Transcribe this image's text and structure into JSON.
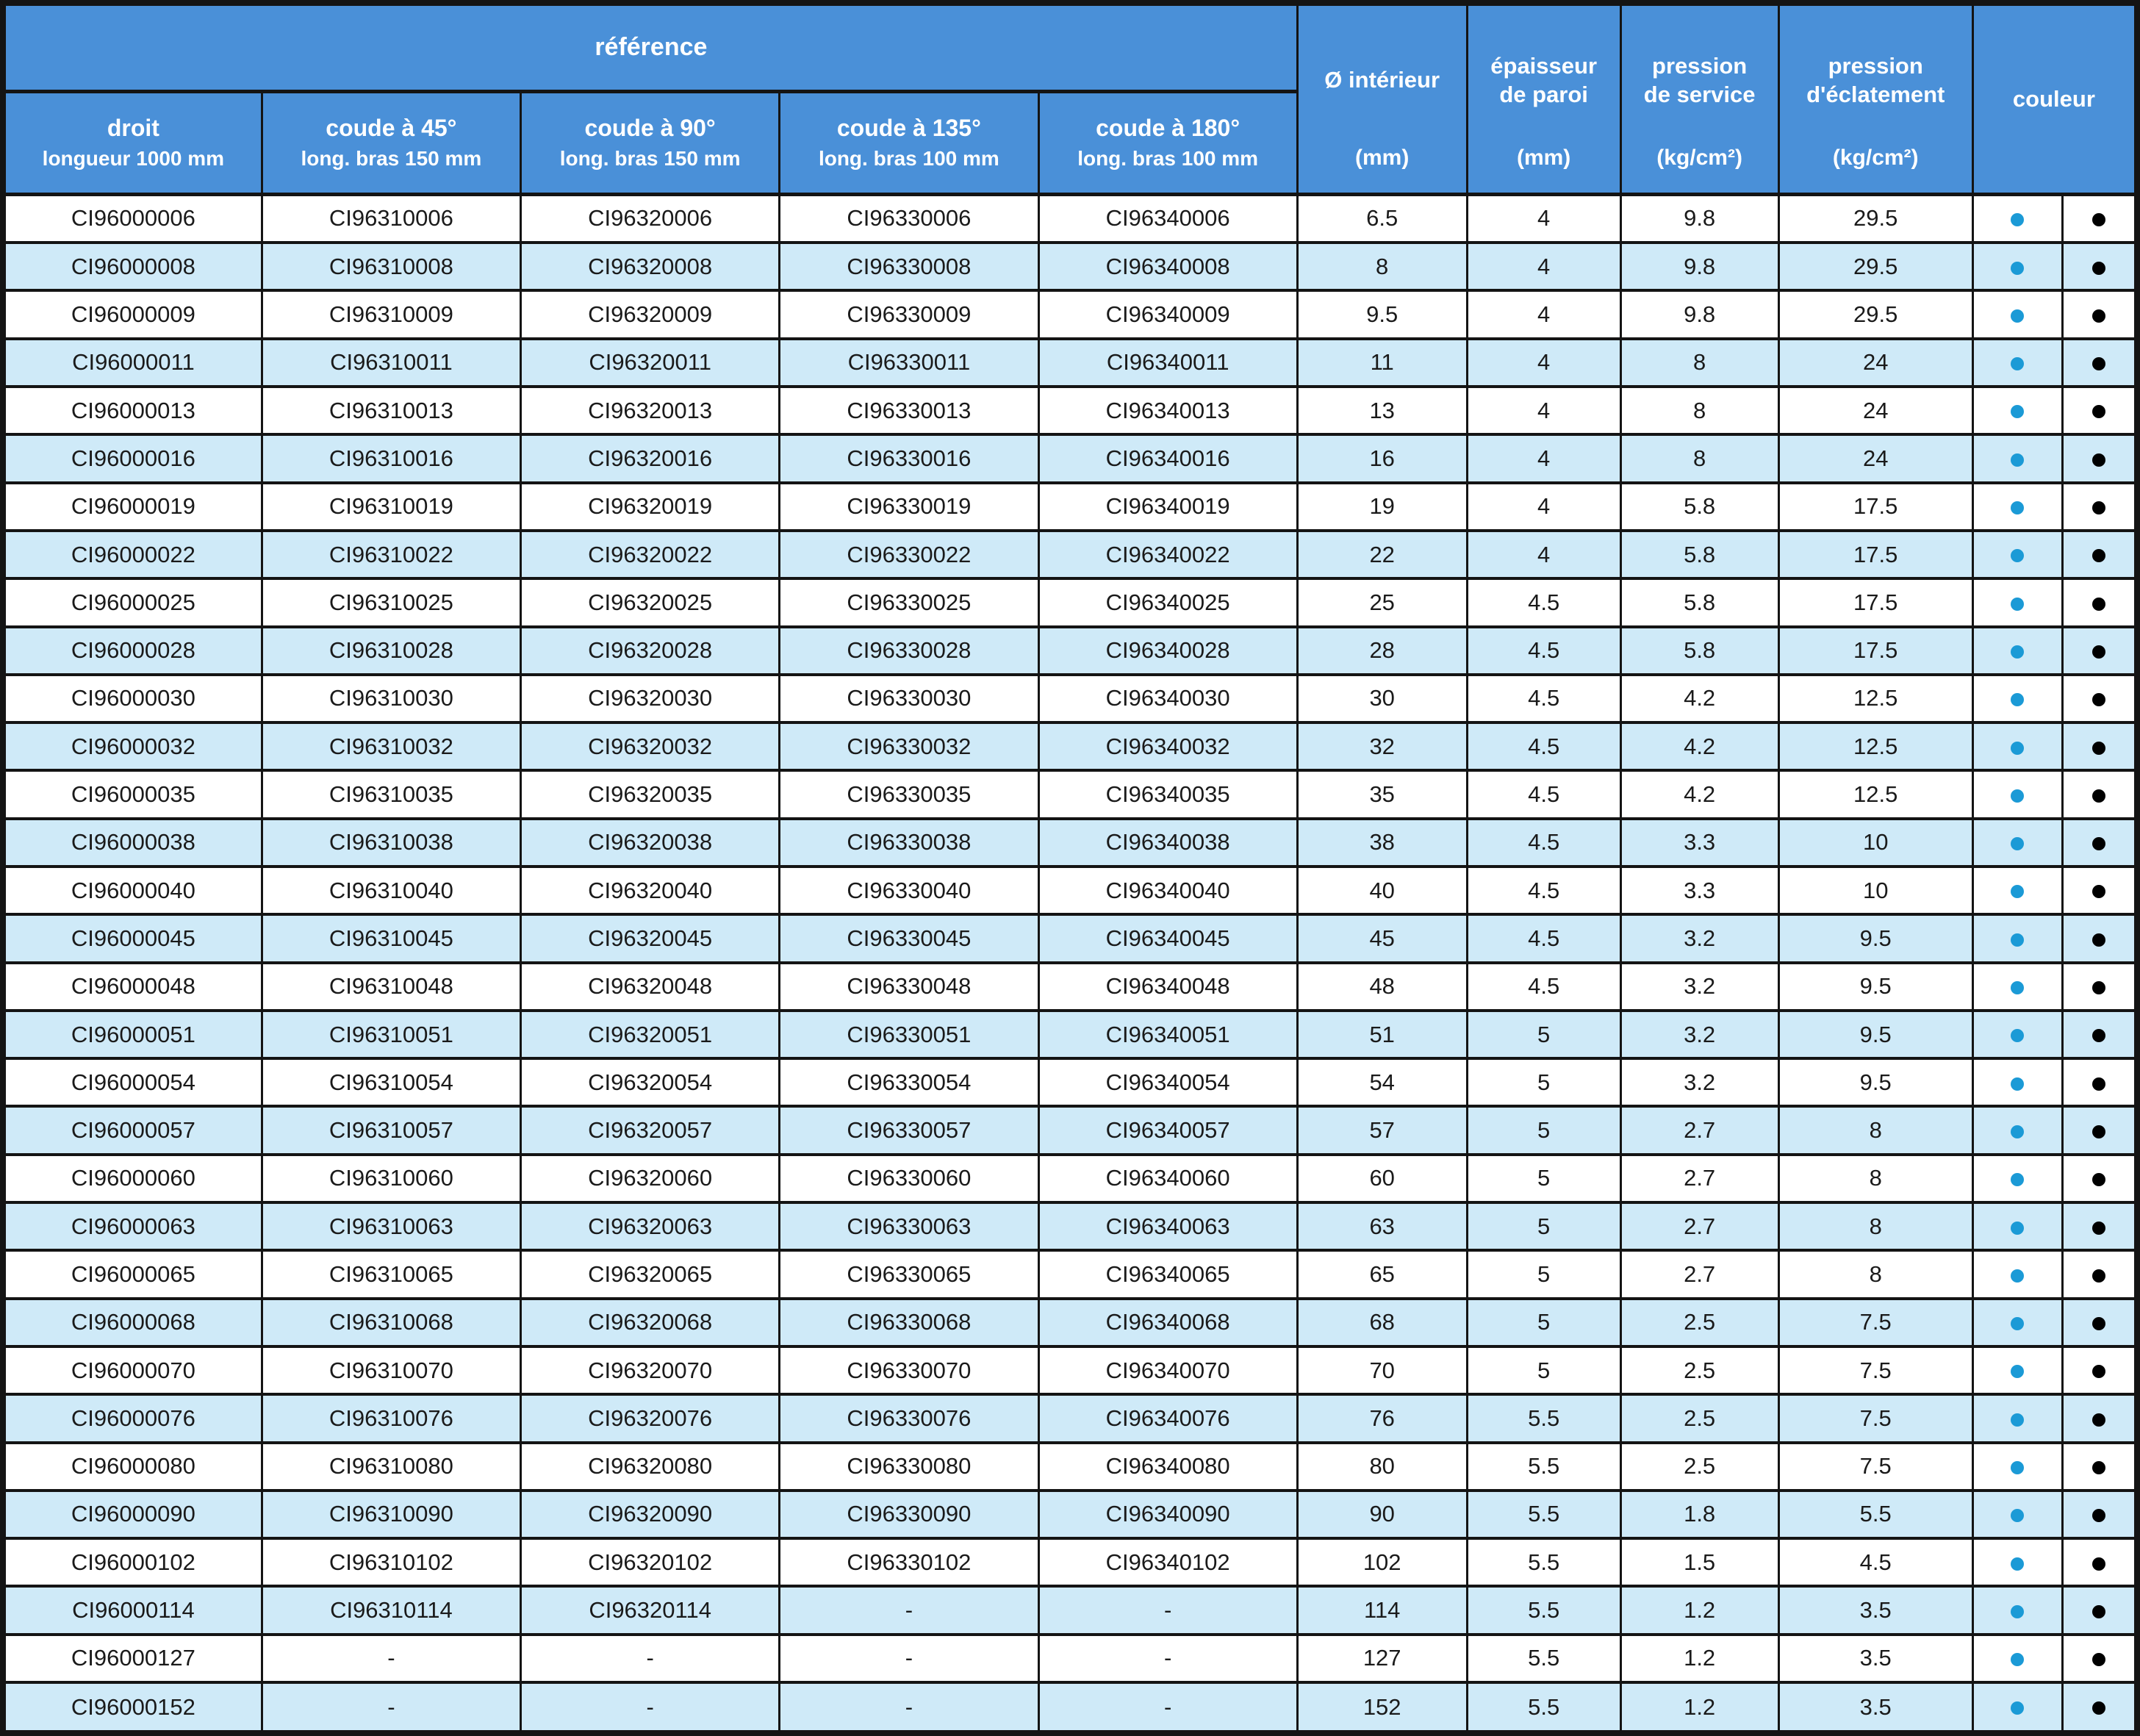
{
  "header": {
    "reference_label": "référence",
    "ref_columns": [
      {
        "line1": "droit",
        "line2": "longueur 1000 mm"
      },
      {
        "line1": "coude à 45°",
        "line2": "long. bras 150 mm"
      },
      {
        "line1": "coude à 90°",
        "line2": "long. bras 150 mm"
      },
      {
        "line1": "coude à 135°",
        "line2": "long. bras 100 mm"
      },
      {
        "line1": "coude à 180°",
        "line2": "long. bras 100 mm"
      }
    ],
    "spec_columns": [
      {
        "line1": "Ø intérieur",
        "line2": "",
        "unit": "(mm)"
      },
      {
        "line1": "épaisseur",
        "line2": "de paroi",
        "unit": "(mm)"
      },
      {
        "line1": "pression",
        "line2": "de service",
        "unit": "(kg/cm²)"
      },
      {
        "line1": "pression",
        "line2": "d'éclatement",
        "unit": "(kg/cm²)"
      }
    ],
    "couleur_label": "couleur"
  },
  "colors": {
    "header_bg": "#4a90d8",
    "row_alt_bg": "#cfeaf8",
    "border": "#141414",
    "dot_blue": "#1b9ad6",
    "dot_black": "#000000"
  },
  "color_dots": [
    "blue-dot-icon",
    "black-dot-icon"
  ],
  "rows": [
    {
      "droit": "CI96000006",
      "c45": "CI96310006",
      "c90": "CI96320006",
      "c135": "CI96330006",
      "c180": "CI96340006",
      "d": "6.5",
      "e": "4",
      "ps": "9.8",
      "pe": "29.5"
    },
    {
      "droit": "CI96000008",
      "c45": "CI96310008",
      "c90": "CI96320008",
      "c135": "CI96330008",
      "c180": "CI96340008",
      "d": "8",
      "e": "4",
      "ps": "9.8",
      "pe": "29.5"
    },
    {
      "droit": "CI96000009",
      "c45": "CI96310009",
      "c90": "CI96320009",
      "c135": "CI96330009",
      "c180": "CI96340009",
      "d": "9.5",
      "e": "4",
      "ps": "9.8",
      "pe": "29.5"
    },
    {
      "droit": "CI96000011",
      "c45": "CI96310011",
      "c90": "CI96320011",
      "c135": "CI96330011",
      "c180": "CI96340011",
      "d": "11",
      "e": "4",
      "ps": "8",
      "pe": "24"
    },
    {
      "droit": "CI96000013",
      "c45": "CI96310013",
      "c90": "CI96320013",
      "c135": "CI96330013",
      "c180": "CI96340013",
      "d": "13",
      "e": "4",
      "ps": "8",
      "pe": "24"
    },
    {
      "droit": "CI96000016",
      "c45": "CI96310016",
      "c90": "CI96320016",
      "c135": "CI96330016",
      "c180": "CI96340016",
      "d": "16",
      "e": "4",
      "ps": "8",
      "pe": "24"
    },
    {
      "droit": "CI96000019",
      "c45": "CI96310019",
      "c90": "CI96320019",
      "c135": "CI96330019",
      "c180": "CI96340019",
      "d": "19",
      "e": "4",
      "ps": "5.8",
      "pe": "17.5"
    },
    {
      "droit": "CI96000022",
      "c45": "CI96310022",
      "c90": "CI96320022",
      "c135": "CI96330022",
      "c180": "CI96340022",
      "d": "22",
      "e": "4",
      "ps": "5.8",
      "pe": "17.5"
    },
    {
      "droit": "CI96000025",
      "c45": "CI96310025",
      "c90": "CI96320025",
      "c135": "CI96330025",
      "c180": "CI96340025",
      "d": "25",
      "e": "4.5",
      "ps": "5.8",
      "pe": "17.5"
    },
    {
      "droit": "CI96000028",
      "c45": "CI96310028",
      "c90": "CI96320028",
      "c135": "CI96330028",
      "c180": "CI96340028",
      "d": "28",
      "e": "4.5",
      "ps": "5.8",
      "pe": "17.5"
    },
    {
      "droit": "CI96000030",
      "c45": "CI96310030",
      "c90": "CI96320030",
      "c135": "CI96330030",
      "c180": "CI96340030",
      "d": "30",
      "e": "4.5",
      "ps": "4.2",
      "pe": "12.5"
    },
    {
      "droit": "CI96000032",
      "c45": "CI96310032",
      "c90": "CI96320032",
      "c135": "CI96330032",
      "c180": "CI96340032",
      "d": "32",
      "e": "4.5",
      "ps": "4.2",
      "pe": "12.5"
    },
    {
      "droit": "CI96000035",
      "c45": "CI96310035",
      "c90": "CI96320035",
      "c135": "CI96330035",
      "c180": "CI96340035",
      "d": "35",
      "e": "4.5",
      "ps": "4.2",
      "pe": "12.5"
    },
    {
      "droit": "CI96000038",
      "c45": "CI96310038",
      "c90": "CI96320038",
      "c135": "CI96330038",
      "c180": "CI96340038",
      "d": "38",
      "e": "4.5",
      "ps": "3.3",
      "pe": "10"
    },
    {
      "droit": "CI96000040",
      "c45": "CI96310040",
      "c90": "CI96320040",
      "c135": "CI96330040",
      "c180": "CI96340040",
      "d": "40",
      "e": "4.5",
      "ps": "3.3",
      "pe": "10"
    },
    {
      "droit": "CI96000045",
      "c45": "CI96310045",
      "c90": "CI96320045",
      "c135": "CI96330045",
      "c180": "CI96340045",
      "d": "45",
      "e": "4.5",
      "ps": "3.2",
      "pe": "9.5"
    },
    {
      "droit": "CI96000048",
      "c45": "CI96310048",
      "c90": "CI96320048",
      "c135": "CI96330048",
      "c180": "CI96340048",
      "d": "48",
      "e": "4.5",
      "ps": "3.2",
      "pe": "9.5"
    },
    {
      "droit": "CI96000051",
      "c45": "CI96310051",
      "c90": "CI96320051",
      "c135": "CI96330051",
      "c180": "CI96340051",
      "d": "51",
      "e": "5",
      "ps": "3.2",
      "pe": "9.5"
    },
    {
      "droit": "CI96000054",
      "c45": "CI96310054",
      "c90": "CI96320054",
      "c135": "CI96330054",
      "c180": "CI96340054",
      "d": "54",
      "e": "5",
      "ps": "3.2",
      "pe": "9.5"
    },
    {
      "droit": "CI96000057",
      "c45": "CI96310057",
      "c90": "CI96320057",
      "c135": "CI96330057",
      "c180": "CI96340057",
      "d": "57",
      "e": "5",
      "ps": "2.7",
      "pe": "8"
    },
    {
      "droit": "CI96000060",
      "c45": "CI96310060",
      "c90": "CI96320060",
      "c135": "CI96330060",
      "c180": "CI96340060",
      "d": "60",
      "e": "5",
      "ps": "2.7",
      "pe": "8"
    },
    {
      "droit": "CI96000063",
      "c45": "CI96310063",
      "c90": "CI96320063",
      "c135": "CI96330063",
      "c180": "CI96340063",
      "d": "63",
      "e": "5",
      "ps": "2.7",
      "pe": "8"
    },
    {
      "droit": "CI96000065",
      "c45": "CI96310065",
      "c90": "CI96320065",
      "c135": "CI96330065",
      "c180": "CI96340065",
      "d": "65",
      "e": "5",
      "ps": "2.7",
      "pe": "8"
    },
    {
      "droit": "CI96000068",
      "c45": "CI96310068",
      "c90": "CI96320068",
      "c135": "CI96330068",
      "c180": "CI96340068",
      "d": "68",
      "e": "5",
      "ps": "2.5",
      "pe": "7.5"
    },
    {
      "droit": "CI96000070",
      "c45": "CI96310070",
      "c90": "CI96320070",
      "c135": "CI96330070",
      "c180": "CI96340070",
      "d": "70",
      "e": "5",
      "ps": "2.5",
      "pe": "7.5"
    },
    {
      "droit": "CI96000076",
      "c45": "CI96310076",
      "c90": "CI96320076",
      "c135": "CI96330076",
      "c180": "CI96340076",
      "d": "76",
      "e": "5.5",
      "ps": "2.5",
      "pe": "7.5"
    },
    {
      "droit": "CI96000080",
      "c45": "CI96310080",
      "c90": "CI96320080",
      "c135": "CI96330080",
      "c180": "CI96340080",
      "d": "80",
      "e": "5.5",
      "ps": "2.5",
      "pe": "7.5"
    },
    {
      "droit": "CI96000090",
      "c45": "CI96310090",
      "c90": "CI96320090",
      "c135": "CI96330090",
      "c180": "CI96340090",
      "d": "90",
      "e": "5.5",
      "ps": "1.8",
      "pe": "5.5"
    },
    {
      "droit": "CI96000102",
      "c45": "CI96310102",
      "c90": "CI96320102",
      "c135": "CI96330102",
      "c180": "CI96340102",
      "d": "102",
      "e": "5.5",
      "ps": "1.5",
      "pe": "4.5"
    },
    {
      "droit": "CI96000114",
      "c45": "CI96310114",
      "c90": "CI96320114",
      "c135": "-",
      "c180": "-",
      "d": "114",
      "e": "5.5",
      "ps": "1.2",
      "pe": "3.5"
    },
    {
      "droit": "CI96000127",
      "c45": "-",
      "c90": "-",
      "c135": "-",
      "c180": "-",
      "d": "127",
      "e": "5.5",
      "ps": "1.2",
      "pe": "3.5"
    },
    {
      "droit": "CI96000152",
      "c45": "-",
      "c90": "-",
      "c135": "-",
      "c180": "-",
      "d": "152",
      "e": "5.5",
      "ps": "1.2",
      "pe": "3.5"
    }
  ]
}
